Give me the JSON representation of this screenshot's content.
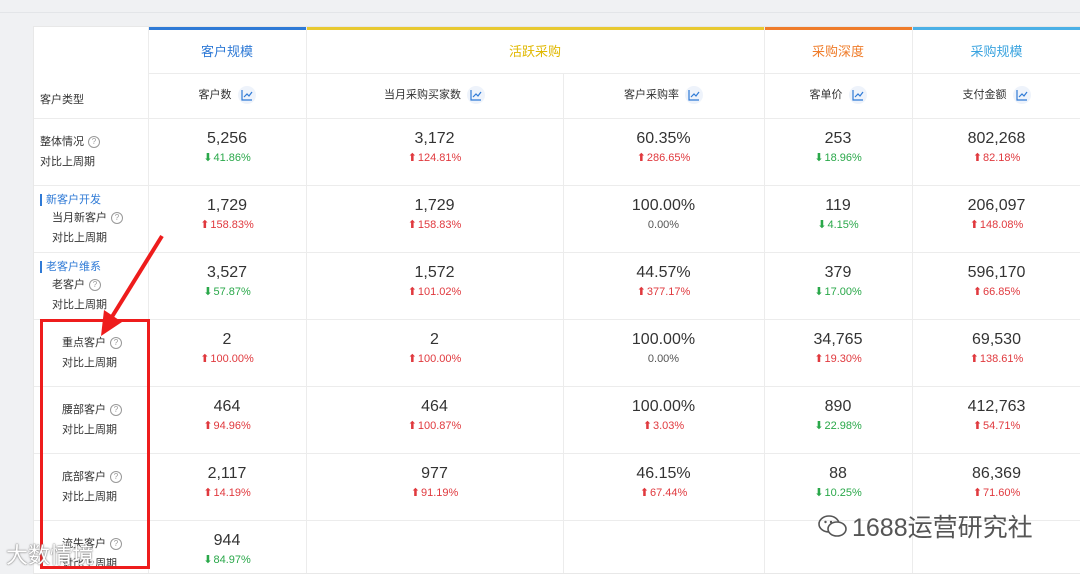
{
  "groups": [
    {
      "label": "客户规模",
      "color": "#2f7ad6",
      "bar": "#2f7ad6"
    },
    {
      "label": "活跃采购",
      "color": "#e0b800",
      "bar": "#e8c930"
    },
    {
      "label": "采购深度",
      "color": "#ef7c2a",
      "bar": "#ef7c2a"
    },
    {
      "label": "采购规模",
      "color": "#3aa3df",
      "bar": "#4bb0e6"
    }
  ],
  "type_header": "客户类型",
  "columns": [
    "客户数",
    "当月采购买家数",
    "客户采购率",
    "客单价",
    "支付金额"
  ],
  "sections": {
    "new": "新客户开发",
    "old": "老客户维系"
  },
  "compare_label": "对比上周期",
  "rows": [
    {
      "name": "整体情况",
      "cells": [
        {
          "v": "5,256",
          "c": "41.86%",
          "d": "down"
        },
        {
          "v": "3,172",
          "c": "124.81%",
          "d": "up"
        },
        {
          "v": "60.35%",
          "c": "286.65%",
          "d": "up"
        },
        {
          "v": "253",
          "c": "18.96%",
          "d": "down"
        },
        {
          "v": "802,268",
          "c": "82.18%",
          "d": "up"
        }
      ]
    },
    {
      "name": "当月新客户",
      "cells": [
        {
          "v": "1,729",
          "c": "158.83%",
          "d": "up"
        },
        {
          "v": "1,729",
          "c": "158.83%",
          "d": "up"
        },
        {
          "v": "100.00%",
          "c": "0.00%",
          "d": "flat"
        },
        {
          "v": "119",
          "c": "4.15%",
          "d": "down"
        },
        {
          "v": "206,097",
          "c": "148.08%",
          "d": "up"
        }
      ]
    },
    {
      "name": "老客户",
      "cells": [
        {
          "v": "3,527",
          "c": "57.87%",
          "d": "down"
        },
        {
          "v": "1,572",
          "c": "101.02%",
          "d": "up"
        },
        {
          "v": "44.57%",
          "c": "377.17%",
          "d": "up"
        },
        {
          "v": "379",
          "c": "17.00%",
          "d": "down"
        },
        {
          "v": "596,170",
          "c": "66.85%",
          "d": "up"
        }
      ]
    },
    {
      "name": "重点客户",
      "cells": [
        {
          "v": "2",
          "c": "100.00%",
          "d": "up"
        },
        {
          "v": "2",
          "c": "100.00%",
          "d": "up"
        },
        {
          "v": "100.00%",
          "c": "0.00%",
          "d": "flat"
        },
        {
          "v": "34,765",
          "c": "19.30%",
          "d": "up"
        },
        {
          "v": "69,530",
          "c": "138.61%",
          "d": "up"
        }
      ]
    },
    {
      "name": "腰部客户",
      "cells": [
        {
          "v": "464",
          "c": "94.96%",
          "d": "up"
        },
        {
          "v": "464",
          "c": "100.87%",
          "d": "up"
        },
        {
          "v": "100.00%",
          "c": "3.03%",
          "d": "up"
        },
        {
          "v": "890",
          "c": "22.98%",
          "d": "down"
        },
        {
          "v": "412,763",
          "c": "54.71%",
          "d": "up"
        }
      ]
    },
    {
      "name": "底部客户",
      "cells": [
        {
          "v": "2,117",
          "c": "14.19%",
          "d": "up"
        },
        {
          "v": "977",
          "c": "91.19%",
          "d": "up"
        },
        {
          "v": "46.15%",
          "c": "67.44%",
          "d": "up"
        },
        {
          "v": "88",
          "c": "10.25%",
          "d": "down"
        },
        {
          "v": "86,369",
          "c": "71.60%",
          "d": "up"
        }
      ]
    },
    {
      "name": "流失客户",
      "cells": [
        {
          "v": "944",
          "c": "84.97%",
          "d": "down"
        }
      ]
    }
  ],
  "watermark_left": "大数情境",
  "watermark_right": "1688运营研究社",
  "colors": {
    "up": "#e0393e",
    "down": "#2aa84a",
    "highlight": "#ee1c1c"
  }
}
